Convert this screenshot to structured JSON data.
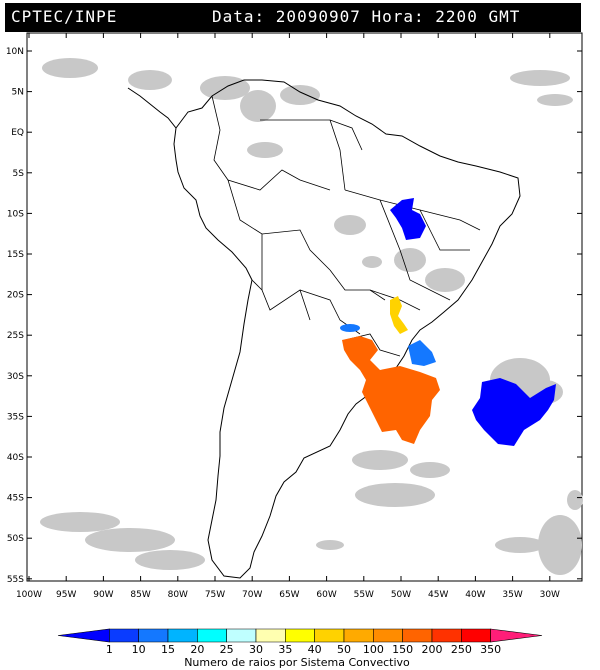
{
  "header": {
    "left_text": "CPTEC/INPE",
    "right_text": "Data: 20090907 Hora: 2200 GMT",
    "background": "#000000",
    "text_color": "#ffffff"
  },
  "map": {
    "region": "South America",
    "projection": "lat-lon",
    "lon_range": [
      -100,
      -27
    ],
    "lat_range": [
      -56,
      12
    ],
    "lat_labels": [
      "10N",
      "5N",
      "EQ",
      "5S",
      "10S",
      "15S",
      "20S",
      "25S",
      "30S",
      "35S",
      "40S",
      "45S",
      "50S",
      "55S"
    ],
    "lon_labels": [
      "100W",
      "95W",
      "90W",
      "85W",
      "80W",
      "75W",
      "70W",
      "65W",
      "60W",
      "55W",
      "50W",
      "45W",
      "40W",
      "35W",
      "30W"
    ],
    "cloud_color": "#c8c8c8",
    "coast_color": "#000000"
  },
  "colorbar": {
    "ticks": [
      "1",
      "10",
      "15",
      "20",
      "25",
      "30",
      "35",
      "40",
      "50",
      "100",
      "150",
      "200",
      "250",
      "350"
    ],
    "colors": [
      "#0000ff",
      "#0a3cff",
      "#1478ff",
      "#00b4ff",
      "#00ffff",
      "#bfffff",
      "#ffffb0",
      "#ffff00",
      "#ffd200",
      "#ffaa00",
      "#ff8c00",
      "#ff6400",
      "#ff3200",
      "#ff0000",
      "#ff1e78"
    ],
    "label": "Numero de raios por Sistema Convectivo"
  }
}
